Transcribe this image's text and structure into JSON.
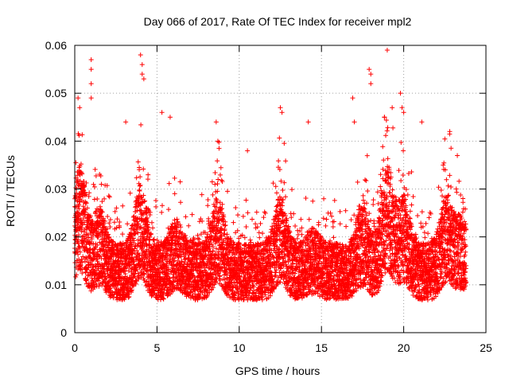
{
  "chart_data": {
    "type": "scatter",
    "title": "Day 066 of 2017, Rate Of TEC Index for receiver mpl2",
    "xlabel": "GPS time / hours",
    "ylabel": "ROTI / TECUs",
    "xlim": [
      0,
      25
    ],
    "ylim": [
      0,
      0.06
    ],
    "xticks": [
      0,
      5,
      10,
      15,
      20,
      25
    ],
    "yticks": [
      0,
      0.01,
      0.02,
      0.03,
      0.04,
      0.05,
      0.06
    ],
    "xtick_labels": [
      "0",
      "5",
      "10",
      "15",
      "20",
      "25"
    ],
    "ytick_labels": [
      "0",
      "0.01",
      "0.02",
      "0.03",
      "0.04",
      "0.05",
      "0.06"
    ],
    "grid": true,
    "marker": "+",
    "series": [
      {
        "name": "ROTI",
        "color": "#ff0000",
        "x_range": [
          0,
          23.8
        ],
        "sample_interval_hours": 0.0083,
        "typical_band": [
          0.008,
          0.022
        ],
        "notable_points": [
          {
            "x": 0.2,
            "y": 0.049
          },
          {
            "x": 0.3,
            "y": 0.047
          },
          {
            "x": 1.0,
            "y": 0.057
          },
          {
            "x": 1.0,
            "y": 0.055
          },
          {
            "x": 1.0,
            "y": 0.052
          },
          {
            "x": 1.0,
            "y": 0.049
          },
          {
            "x": 3.1,
            "y": 0.044
          },
          {
            "x": 4.0,
            "y": 0.058
          },
          {
            "x": 4.1,
            "y": 0.056
          },
          {
            "x": 4.1,
            "y": 0.054
          },
          {
            "x": 4.2,
            "y": 0.053
          },
          {
            "x": 5.3,
            "y": 0.046
          },
          {
            "x": 5.8,
            "y": 0.045
          },
          {
            "x": 8.6,
            "y": 0.044
          },
          {
            "x": 8.7,
            "y": 0.04
          },
          {
            "x": 10.5,
            "y": 0.038
          },
          {
            "x": 12.5,
            "y": 0.047
          },
          {
            "x": 12.6,
            "y": 0.046
          },
          {
            "x": 14.2,
            "y": 0.044
          },
          {
            "x": 16.9,
            "y": 0.049
          },
          {
            "x": 17.0,
            "y": 0.044
          },
          {
            "x": 17.9,
            "y": 0.055
          },
          {
            "x": 18.0,
            "y": 0.054
          },
          {
            "x": 18.0,
            "y": 0.052
          },
          {
            "x": 19.0,
            "y": 0.059
          },
          {
            "x": 19.3,
            "y": 0.047
          },
          {
            "x": 19.8,
            "y": 0.05
          },
          {
            "x": 19.9,
            "y": 0.047
          },
          {
            "x": 20.0,
            "y": 0.046
          },
          {
            "x": 21.1,
            "y": 0.044
          },
          {
            "x": 22.4,
            "y": 0.035
          },
          {
            "x": 22.8,
            "y": 0.042
          },
          {
            "x": 23.6,
            "y": 0.028
          }
        ]
      }
    ]
  }
}
